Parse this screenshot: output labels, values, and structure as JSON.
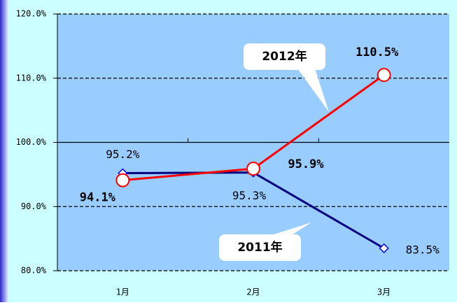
{
  "chart_data": {
    "type": "line",
    "categories": [
      "1月",
      "2月",
      "3月"
    ],
    "series": [
      {
        "name": "2011年",
        "color": "#000080",
        "values": [
          95.2,
          95.3,
          83.5
        ],
        "value_labels": [
          "95.2%",
          "95.3%",
          "83.5%"
        ]
      },
      {
        "name": "2012年",
        "color": "#ff0000",
        "values": [
          94.1,
          95.9,
          110.5
        ],
        "value_labels": [
          "94.1%",
          "95.9%",
          "110.5%"
        ]
      }
    ],
    "ylim": [
      80,
      120
    ],
    "yticks": [
      {
        "value": 80,
        "label": "80.0%"
      },
      {
        "value": 90,
        "label": "90.0%"
      },
      {
        "value": 100,
        "label": "100.0%"
      },
      {
        "value": 110,
        "label": "110.0%"
      },
      {
        "value": 120,
        "label": "120.0%"
      }
    ],
    "grid": true
  }
}
